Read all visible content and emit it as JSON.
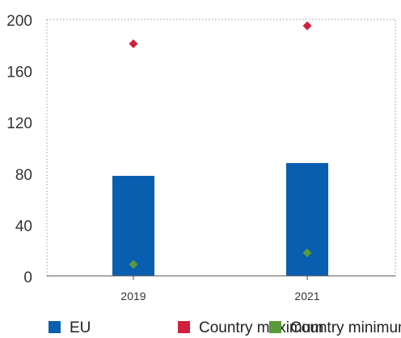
{
  "chart_data": {
    "type": "bar",
    "categories": [
      "2019",
      "2021"
    ],
    "ylim": [
      0,
      200
    ],
    "yticks": [
      0,
      40,
      80,
      120,
      160,
      200
    ],
    "grid": "dotted-border",
    "legend_placement": "bottom",
    "series": [
      {
        "name": "EU",
        "kind": "bar",
        "marker": "square",
        "color": "#0a5eb0",
        "values": [
          78,
          88
        ]
      },
      {
        "name": "Country maximum",
        "kind": "point",
        "marker": "diamond",
        "color": "#d0203c",
        "values": [
          181,
          195
        ]
      },
      {
        "name": "Country minimum",
        "kind": "point",
        "marker": "diamond",
        "color": "#5a9a3a",
        "values": [
          9,
          18
        ]
      }
    ]
  }
}
